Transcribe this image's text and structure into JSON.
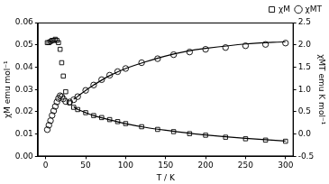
{
  "chart_data": {
    "type": "scatter",
    "x_label": "T / K",
    "y_label": "χM emu mol⁻¹",
    "y2_label": "χMT emu K mol⁻¹",
    "xlim": [
      -10,
      310
    ],
    "xticks": [
      0,
      50,
      100,
      150,
      200,
      250,
      300
    ],
    "ylim": [
      0,
      0.06
    ],
    "yticks": [
      {
        "value": 0,
        "label": "0.00"
      },
      {
        "value": 0.01,
        "label": "0.01"
      },
      {
        "value": 0.02,
        "label": "0.02"
      },
      {
        "value": 0.03,
        "label": "0.03"
      },
      {
        "value": 0.04,
        "label": "0.04"
      },
      {
        "value": 0.05,
        "label": "0.05"
      },
      {
        "value": 0.06,
        "label": "0.06"
      }
    ],
    "y2lim": [
      -0.5,
      2.5
    ],
    "y2ticks": [
      -0.5,
      {
        "value": 0,
        "label": "0.0"
      },
      0.5,
      {
        "value": 1,
        "label": "1.0"
      },
      1.5,
      {
        "value": 2,
        "label": "2.0"
      },
      2.5
    ],
    "grid": false,
    "legend": "top-right",
    "series": [
      {
        "name": "χM",
        "color": "#000000",
        "marker": "square",
        "line_style": "none",
        "x": [
          2,
          4,
          6,
          8,
          10,
          12,
          14,
          16,
          18,
          20,
          22,
          25,
          30,
          35,
          40,
          50,
          60,
          70,
          80,
          90,
          100,
          120,
          140,
          160,
          180,
          200,
          225,
          250,
          275,
          300
        ],
        "values": [
          0.051,
          0.051,
          0.0515,
          0.052,
          0.052,
          0.0525,
          0.052,
          0.051,
          0.048,
          0.042,
          0.036,
          0.029,
          0.024,
          0.022,
          0.021,
          0.0196,
          0.0183,
          0.0174,
          0.0165,
          0.0156,
          0.0147,
          0.0133,
          0.0121,
          0.0111,
          0.0102,
          0.0095,
          0.0086,
          0.0079,
          0.0073,
          0.0068
        ]
      },
      {
        "name": "χMT",
        "color": "#000000",
        "marker": "circle",
        "line_style": "none",
        "axis": "y2",
        "x": [
          2,
          4,
          6,
          8,
          10,
          12,
          14,
          16,
          18,
          20,
          22,
          25,
          30,
          35,
          40,
          50,
          60,
          70,
          80,
          90,
          100,
          120,
          140,
          160,
          180,
          200,
          225,
          250,
          275,
          300
        ],
        "values": [
          0.1,
          0.2,
          0.3,
          0.42,
          0.52,
          0.62,
          0.72,
          0.8,
          0.86,
          0.84,
          0.79,
          0.73,
          0.72,
          0.77,
          0.84,
          0.98,
          1.1,
          1.22,
          1.32,
          1.4,
          1.47,
          1.6,
          1.69,
          1.78,
          1.84,
          1.9,
          1.94,
          1.98,
          2.01,
          2.04
        ]
      },
      {
        "type": "line",
        "color": "#000000",
        "marker": "none",
        "line_style": "solid",
        "x": [
          35,
          40,
          50,
          60,
          80,
          100,
          125,
          150,
          175,
          200,
          250,
          300
        ],
        "values": [
          0.0222,
          0.0211,
          0.0196,
          0.0183,
          0.0164,
          0.0147,
          0.013,
          0.0117,
          0.0106,
          0.0096,
          0.0081,
          0.0069
        ]
      },
      {
        "type": "line",
        "color": "#000000",
        "marker": "none",
        "line_style": "solid",
        "axis": "y2",
        "x": [
          35,
          40,
          50,
          60,
          80,
          100,
          125,
          150,
          175,
          200,
          250,
          300
        ],
        "values": [
          0.78,
          0.845,
          0.98,
          1.1,
          1.31,
          1.47,
          1.62,
          1.75,
          1.85,
          1.92,
          2.02,
          2.07
        ]
      }
    ]
  }
}
